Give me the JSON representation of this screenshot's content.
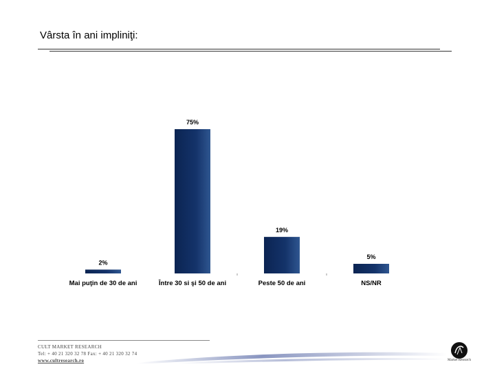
{
  "page": {
    "title": "Vârsta în ani impliniţi:"
  },
  "footer": {
    "company": "CULT MARKET RESEARCH",
    "contact": "Tel: + 40 21 320 32 78  Fax: + 40 21 320 32 74",
    "website": "www.cultresearch.ro",
    "logo_text": "Market Research"
  },
  "colors": {
    "bar": "#0e2b5c",
    "bar_light": "#2f5690"
  },
  "chart_data": {
    "type": "bar",
    "categories": [
      "Mai puţin de 30 de ani",
      "Între 30 si şi 50 de ani",
      "Peste 50 de ani",
      "NS/NR"
    ],
    "values": [
      2,
      75,
      19,
      5
    ],
    "data_labels": [
      "2%",
      "75%",
      "19%",
      "5%"
    ],
    "ylim": [
      0,
      75
    ],
    "grid": false,
    "legend": "none"
  }
}
